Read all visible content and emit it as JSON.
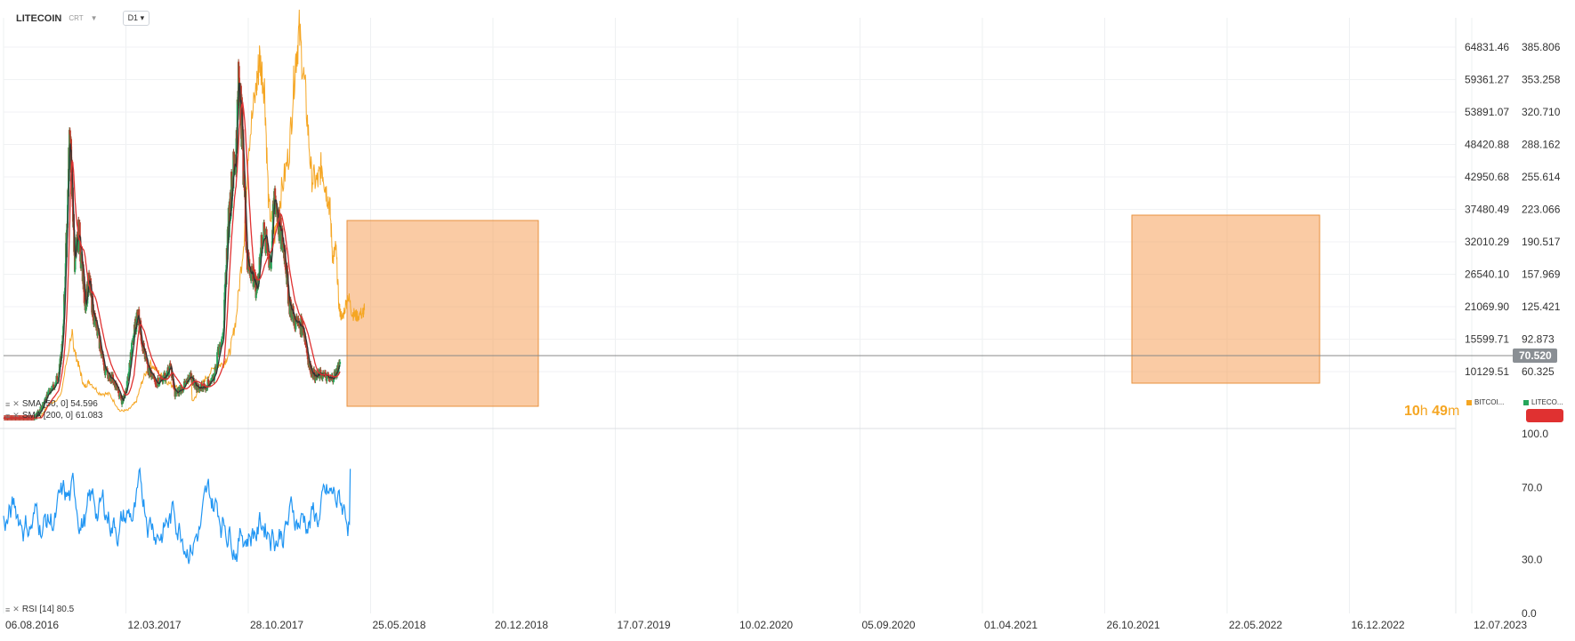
{
  "toolbar": {
    "symbol": "LITECOIN",
    "tag": "CRT",
    "timeframe": "D1"
  },
  "indicators": {
    "sma50": "SMA [50, 0] 54.596",
    "sma200": "SMA [200, 0] 61.083",
    "rsi": "RSI [14] 80.5"
  },
  "timer": {
    "hours": "10",
    "h_unit": "h",
    "minutes": "49",
    "m_unit": "m"
  },
  "legend": [
    {
      "label": "BITCOI...",
      "color": "#f5a623"
    },
    {
      "label": "LITECO...",
      "color": "#26a65b"
    }
  ],
  "colors": {
    "bitcoin": "#f5a623",
    "sma50": "#333333",
    "sma200": "#e03131",
    "rsi": "#2196f3",
    "highlight": "#f5a05a",
    "up": "#26a65b",
    "down": "#c0392b"
  },
  "chart_data": {
    "type": "line",
    "x_tick_labels": [
      "06.08.2016",
      "12.03.2017",
      "28.10.2017",
      "25.05.2018",
      "20.12.2018",
      "17.07.2019",
      "10.02.2020",
      "05.09.2020",
      "01.04.2021",
      "26.10.2021",
      "22.05.2022",
      "16.12.2022",
      "12.07.2023"
    ],
    "y_ticks_bitcoin": [
      "64831.46",
      "59361.27",
      "53891.07",
      "48420.88",
      "42950.68",
      "37480.49",
      "32010.29",
      "26540.10",
      "21069.90",
      "15599.71",
      "10129.51"
    ],
    "y_ticks_litecoin": [
      "385.806",
      "353.258",
      "320.710",
      "288.162",
      "255.614",
      "223.066",
      "190.517",
      "157.969",
      "125.421",
      "92.873",
      "60.325"
    ],
    "current_price": "70.520",
    "bitcoin_series": [
      [
        0,
        600
      ],
      [
        0.05,
        1050
      ],
      [
        0.12,
        1200
      ],
      [
        0.18,
        2500
      ],
      [
        0.22,
        4500
      ],
      [
        0.28,
        6000
      ],
      [
        0.335,
        17000
      ],
      [
        0.345,
        14000
      ],
      [
        0.37,
        11000
      ],
      [
        0.395,
        7500
      ],
      [
        0.42,
        8500
      ],
      [
        0.47,
        6500
      ],
      [
        0.52,
        6300
      ],
      [
        0.57,
        3500
      ],
      [
        0.61,
        3600
      ],
      [
        0.65,
        5000
      ],
      [
        0.68,
        8500
      ],
      [
        0.72,
        11500
      ],
      [
        0.76,
        10000
      ],
      [
        0.8,
        8500
      ],
      [
        0.84,
        7500
      ],
      [
        0.89,
        7500
      ],
      [
        0.92,
        9500
      ],
      [
        0.925,
        5000
      ],
      [
        0.96,
        7000
      ],
      [
        0.99,
        9000
      ],
      [
        1.04,
        11000
      ],
      [
        1.08,
        11500
      ],
      [
        1.11,
        13500
      ],
      [
        1.14,
        19000
      ],
      [
        1.18,
        33000
      ],
      [
        1.2,
        48000
      ],
      [
        1.24,
        58000
      ],
      [
        1.255,
        63000
      ],
      [
        1.28,
        58000
      ],
      [
        1.3,
        38000
      ],
      [
        1.33,
        33000
      ],
      [
        1.36,
        40000
      ],
      [
        1.4,
        47000
      ],
      [
        1.43,
        62000
      ],
      [
        1.45,
        67500
      ],
      [
        1.48,
        57000
      ],
      [
        1.51,
        43000
      ],
      [
        1.54,
        42000
      ],
      [
        1.56,
        45000
      ],
      [
        1.58,
        41000
      ],
      [
        1.6,
        38000
      ],
      [
        1.615,
        29000
      ],
      [
        1.63,
        31000
      ],
      [
        1.645,
        21000
      ],
      [
        1.66,
        19000
      ],
      [
        1.69,
        23000
      ],
      [
        1.71,
        20000
      ],
      [
        1.73,
        19500
      ],
      [
        1.76,
        20000
      ],
      [
        1.77,
        20500
      ]
    ],
    "litecoin_series": [
      [
        0,
        3.8
      ],
      [
        0.05,
        3.8
      ],
      [
        0.1,
        4.5
      ],
      [
        0.15,
        13
      ],
      [
        0.19,
        25
      ],
      [
        0.22,
        40
      ],
      [
        0.27,
        55
      ],
      [
        0.29,
        90
      ],
      [
        0.31,
        200
      ],
      [
        0.325,
        300
      ],
      [
        0.335,
        250
      ],
      [
        0.35,
        170
      ],
      [
        0.37,
        200
      ],
      [
        0.4,
        130
      ],
      [
        0.42,
        150
      ],
      [
        0.44,
        120
      ],
      [
        0.47,
        90
      ],
      [
        0.5,
        60
      ],
      [
        0.54,
        52
      ],
      [
        0.58,
        30
      ],
      [
        0.6,
        40
      ],
      [
        0.64,
        100
      ],
      [
        0.66,
        120
      ],
      [
        0.68,
        90
      ],
      [
        0.71,
        60
      ],
      [
        0.75,
        50
      ],
      [
        0.79,
        55
      ],
      [
        0.82,
        65
      ],
      [
        0.84,
        38
      ],
      [
        0.88,
        45
      ],
      [
        0.92,
        55
      ],
      [
        0.95,
        44
      ],
      [
        0.99,
        46
      ],
      [
        1.03,
        55
      ],
      [
        1.08,
        110
      ],
      [
        1.1,
        200
      ],
      [
        1.12,
        250
      ],
      [
        1.14,
        280
      ],
      [
        1.155,
        360
      ],
      [
        1.17,
        300
      ],
      [
        1.195,
        170
      ],
      [
        1.22,
        160
      ],
      [
        1.24,
        140
      ],
      [
        1.27,
        200
      ],
      [
        1.31,
        170
      ],
      [
        1.33,
        240
      ],
      [
        1.355,
        200
      ],
      [
        1.38,
        180
      ],
      [
        1.4,
        130
      ],
      [
        1.43,
        110
      ],
      [
        1.47,
        105
      ],
      [
        1.5,
        65
      ],
      [
        1.53,
        55
      ],
      [
        1.56,
        58
      ],
      [
        1.6,
        52
      ],
      [
        1.63,
        58
      ],
      [
        1.65,
        70
      ]
    ],
    "rsi": {
      "label": "RSI [14]",
      "last": 80.5,
      "y_ticks": [
        "100.0",
        "70.0",
        "30.0",
        "0.0"
      ]
    },
    "sma": {
      "sma50_last": 54.596,
      "sma200_last": 61.083
    },
    "highlight_boxes": [
      {
        "from": "04.2018",
        "to": "01.2019",
        "note": ""
      },
      {
        "from": "12.2021",
        "to": "11.2022",
        "note": ""
      }
    ]
  }
}
